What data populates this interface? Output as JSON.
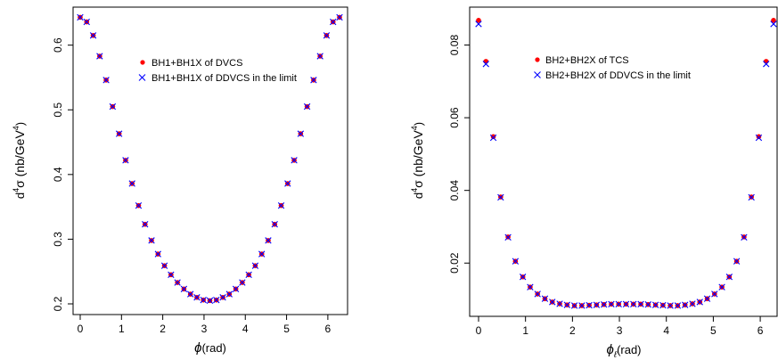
{
  "chart_data": [
    {
      "type": "scatter",
      "xlabel_main": "ϕ",
      "xlabel_unit": "(rad)",
      "ylabel_prefix": "d",
      "ylabel_sup1": "4",
      "ylabel_mid": "σ (nb/GeV",
      "ylabel_sup2": "4",
      "ylabel_suffix": ")",
      "xlim": [
        0,
        6.2832
      ],
      "ylim": [
        0.2,
        0.645
      ],
      "xticks": [
        0,
        1,
        2,
        3,
        4,
        5,
        6
      ],
      "xtick_labels": [
        "0",
        "1",
        "2",
        "3",
        "4",
        "5",
        "6"
      ],
      "yticks": [
        0.2,
        0.3,
        0.4,
        0.5,
        0.6
      ],
      "ytick_labels": [
        "0.2",
        "0.3",
        "0.4",
        "0.5",
        "0.6"
      ],
      "legend_position": "top-center",
      "series": [
        {
          "name": "BH1+BH1X of DVCS",
          "marker": "dot",
          "color": "#ff0000",
          "x": [
            0,
            0.1571,
            0.3142,
            0.4712,
            0.6283,
            0.7854,
            0.9425,
            1.0996,
            1.2566,
            1.4137,
            1.5708,
            1.7279,
            1.885,
            2.042,
            2.1991,
            2.3562,
            2.5133,
            2.6704,
            2.8274,
            2.9845,
            3.1416,
            3.2987,
            3.4558,
            3.6128,
            3.7699,
            3.927,
            4.0841,
            4.2412,
            4.3982,
            4.5553,
            4.7124,
            4.8695,
            5.0265,
            5.1836,
            5.3407,
            5.4978,
            5.6549,
            5.8119,
            5.969,
            6.1261,
            6.2832
          ],
          "y": [
            0.643,
            0.636,
            0.615,
            0.583,
            0.546,
            0.505,
            0.463,
            0.422,
            0.386,
            0.352,
            0.323,
            0.298,
            0.277,
            0.259,
            0.245,
            0.233,
            0.223,
            0.215,
            0.21,
            0.206,
            0.205,
            0.206,
            0.21,
            0.215,
            0.223,
            0.233,
            0.245,
            0.259,
            0.277,
            0.298,
            0.323,
            0.352,
            0.386,
            0.422,
            0.463,
            0.505,
            0.546,
            0.583,
            0.615,
            0.636,
            0.643
          ]
        },
        {
          "name": "BH1+BH1X of DDVCS in the limit",
          "marker": "cross",
          "color": "#0000ff",
          "x": [
            0,
            0.1571,
            0.3142,
            0.4712,
            0.6283,
            0.7854,
            0.9425,
            1.0996,
            1.2566,
            1.4137,
            1.5708,
            1.7279,
            1.885,
            2.042,
            2.1991,
            2.3562,
            2.5133,
            2.6704,
            2.8274,
            2.9845,
            3.1416,
            3.2987,
            3.4558,
            3.6128,
            3.7699,
            3.927,
            4.0841,
            4.2412,
            4.3982,
            4.5553,
            4.7124,
            4.8695,
            5.0265,
            5.1836,
            5.3407,
            5.4978,
            5.6549,
            5.8119,
            5.969,
            6.1261,
            6.2832
          ],
          "y": [
            0.643,
            0.636,
            0.615,
            0.583,
            0.546,
            0.505,
            0.463,
            0.422,
            0.386,
            0.352,
            0.323,
            0.298,
            0.277,
            0.259,
            0.245,
            0.233,
            0.223,
            0.215,
            0.21,
            0.206,
            0.205,
            0.206,
            0.21,
            0.215,
            0.223,
            0.233,
            0.245,
            0.259,
            0.277,
            0.298,
            0.323,
            0.352,
            0.386,
            0.422,
            0.463,
            0.505,
            0.546,
            0.583,
            0.615,
            0.636,
            0.643
          ]
        }
      ]
    },
    {
      "type": "scatter",
      "xlabel_main": "ϕ",
      "xlabel_sub": "ℓ",
      "xlabel_unit": "(rad)",
      "ylabel_prefix": "d",
      "ylabel_sup1": "4",
      "ylabel_mid": "σ (nb/GeV",
      "ylabel_sup2": "4",
      "ylabel_suffix": ")",
      "xlim": [
        0,
        6.2832
      ],
      "ylim": [
        0.0078,
        0.087
      ],
      "xticks": [
        0,
        1,
        2,
        3,
        4,
        5,
        6
      ],
      "xtick_labels": [
        "0",
        "1",
        "2",
        "3",
        "4",
        "5",
        "6"
      ],
      "yticks": [
        0.02,
        0.04,
        0.06,
        0.08
      ],
      "ytick_labels": [
        "0.02",
        "0.04",
        "0.06",
        "0.08"
      ],
      "legend_position": "top-center",
      "series": [
        {
          "name": "BH2+BH2X of TCS",
          "marker": "dot",
          "color": "#ff0000",
          "x": [
            0,
            0.1571,
            0.3142,
            0.4712,
            0.6283,
            0.7854,
            0.9425,
            1.0996,
            1.2566,
            1.4137,
            1.5708,
            1.7279,
            1.885,
            2.042,
            2.1991,
            2.3562,
            2.5133,
            2.6704,
            2.8274,
            2.9845,
            3.1416,
            3.2987,
            3.4558,
            3.6128,
            3.7699,
            3.927,
            4.0841,
            4.2412,
            4.3982,
            4.5553,
            4.7124,
            4.8695,
            5.0265,
            5.1836,
            5.3407,
            5.4978,
            5.6549,
            5.8119,
            5.969,
            6.1261,
            6.2832
          ],
          "y": [
            0.0868,
            0.0755,
            0.0548,
            0.0382,
            0.0272,
            0.0205,
            0.0162,
            0.0134,
            0.0115,
            0.0102,
            0.0093,
            0.0088,
            0.0085,
            0.0083,
            0.0083,
            0.0084,
            0.0085,
            0.0086,
            0.0087,
            0.0087,
            0.0087,
            0.0087,
            0.0087,
            0.0086,
            0.0085,
            0.0084,
            0.0083,
            0.0083,
            0.0085,
            0.0088,
            0.0093,
            0.0102,
            0.0115,
            0.0134,
            0.0162,
            0.0205,
            0.0272,
            0.0382,
            0.0548,
            0.0755,
            0.0868
          ]
        },
        {
          "name": "BH2+BH2X of DDVCS in the limit",
          "marker": "cross",
          "color": "#0000ff",
          "x": [
            0,
            0.1571,
            0.3142,
            0.4712,
            0.6283,
            0.7854,
            0.9425,
            1.0996,
            1.2566,
            1.4137,
            1.5708,
            1.7279,
            1.885,
            2.042,
            2.1991,
            2.3562,
            2.5133,
            2.6704,
            2.8274,
            2.9845,
            3.1416,
            3.2987,
            3.4558,
            3.6128,
            3.7699,
            3.927,
            4.0841,
            4.2412,
            4.3982,
            4.5553,
            4.7124,
            4.8695,
            5.0265,
            5.1836,
            5.3407,
            5.4978,
            5.6549,
            5.8119,
            5.969,
            6.1261,
            6.2832
          ],
          "y": [
            0.0858,
            0.0748,
            0.0545,
            0.0381,
            0.0271,
            0.0205,
            0.0162,
            0.0134,
            0.0115,
            0.0102,
            0.0093,
            0.0088,
            0.0085,
            0.0083,
            0.0083,
            0.0084,
            0.0085,
            0.0086,
            0.0087,
            0.0087,
            0.0087,
            0.0087,
            0.0087,
            0.0086,
            0.0085,
            0.0084,
            0.0083,
            0.0083,
            0.0085,
            0.0088,
            0.0093,
            0.0102,
            0.0115,
            0.0134,
            0.0162,
            0.0205,
            0.0271,
            0.0381,
            0.0545,
            0.0748,
            0.0858
          ]
        }
      ]
    }
  ]
}
